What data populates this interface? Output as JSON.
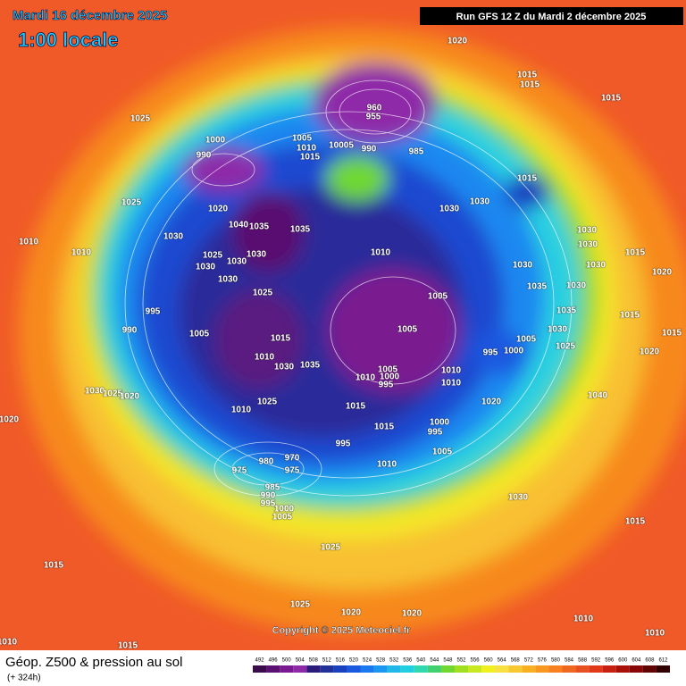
{
  "header": {
    "date": "Mardi 16 décembre 2025",
    "time": "1:00 locale",
    "run": "Run GFS 12 Z du Mardi 2 décembre 2025"
  },
  "footer": {
    "title": "Géop. Z500 & pression au sol",
    "lead": "(+ 324h)",
    "copyright": "Copyright © 2025 Meteociel.fr"
  },
  "legend": {
    "values": [
      492,
      496,
      500,
      504,
      508,
      512,
      516,
      520,
      524,
      528,
      532,
      536,
      540,
      544,
      548,
      552,
      556,
      560,
      564,
      568,
      572,
      576,
      580,
      584,
      588,
      592,
      596,
      600,
      604,
      608,
      612
    ],
    "colors": [
      "#3a0a4a",
      "#5a1070",
      "#7a1a90",
      "#8e2aa8",
      "#2a1a7a",
      "#22309a",
      "#1a40c0",
      "#1a58e0",
      "#1a78f0",
      "#1a98f0",
      "#20b8e8",
      "#20d0e0",
      "#30d8b0",
      "#40d070",
      "#70d830",
      "#a0e020",
      "#c8e820",
      "#f0f020",
      "#f8e040",
      "#f8c830",
      "#f8b020",
      "#f89820",
      "#f88020",
      "#f06820",
      "#e85020",
      "#e03818",
      "#c82010",
      "#a81008",
      "#880808",
      "#600404",
      "#300000"
    ]
  },
  "pressure_labels": [
    "1020",
    "1015",
    "1015",
    "1015",
    "1025",
    "1000",
    "1005",
    "1010",
    "1015",
    "10005",
    "985",
    "960",
    "955",
    "990",
    "990",
    "1015",
    "1025",
    "1020",
    "1040",
    "1035",
    "1035",
    "1030",
    "1030",
    "1030",
    "1030",
    "1030",
    "1010",
    "1010",
    "1030",
    "1025",
    "1030",
    "1030",
    "1030",
    "1010",
    "1030",
    "1020",
    "1015",
    "1030",
    "1025",
    "1005",
    "1035",
    "1030",
    "1035",
    "995",
    "990",
    "1005",
    "1005",
    "1015",
    "1030",
    "1005",
    "1000",
    "995",
    "1015",
    "1025",
    "1020",
    "1015",
    "1010",
    "1030",
    "1035",
    "1005",
    "1000",
    "995",
    "1010",
    "1010",
    "1010",
    "1020",
    "1040",
    "1025",
    "1010",
    "1015",
    "1015",
    "1000",
    "995",
    "1030",
    "1025",
    "1020",
    "995",
    "1020",
    "1005",
    "1010",
    "980",
    "970",
    "975",
    "975",
    "985",
    "990",
    "995",
    "1000",
    "1005",
    "1030",
    "1015",
    "1025",
    "1015",
    "1025",
    "1020",
    "1020",
    "1010",
    "1010",
    "1015",
    "1010"
  ]
}
